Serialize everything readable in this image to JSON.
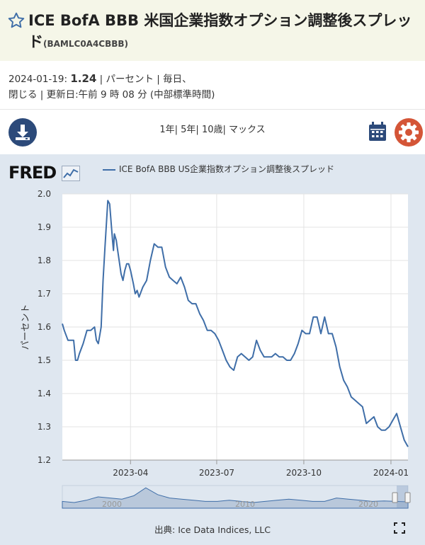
{
  "header": {
    "title": "ICE BofA BBB 米国企業指数オプション調整後スプレッド",
    "series_code": "(BAMLC0A4CBBB)"
  },
  "meta": {
    "date": "2024-01-19:",
    "value": "1.24",
    "line1_rest": "| パーセント | 毎日、",
    "line2": "閉じる | 更新日:午前 9 時 08 分 (中部標準時間)"
  },
  "toolbar": {
    "range_1y": "1年",
    "range_5y": "5年",
    "range_10y": "10歳",
    "range_max": "マックス",
    "sep": "|"
  },
  "icons": {
    "download": "download-icon",
    "calendar": "calendar-icon",
    "settings": "gear-icon",
    "favorite": "star-icon",
    "fullscreen": "fullscreen-icon"
  },
  "colors": {
    "line": "#3f6ea8",
    "download_bg": "#2c4a7a",
    "settings_bg": "#d45537",
    "chart_bg": "#dfe7f0"
  },
  "brand": {
    "logo_text": "FRED"
  },
  "source": "出典: Ice Data Indices, LLC",
  "chart_data": {
    "type": "line",
    "legend": "ICE BofA BBB US企業指数オプション調整後スプレッド",
    "ylabel": "パーセント",
    "ylim": [
      1.2,
      2.0
    ],
    "yticks": [
      "1.2",
      "1.3",
      "1.4",
      "1.5",
      "1.6",
      "1.7",
      "1.8",
      "1.9",
      "2.0"
    ],
    "xlim": [
      "2023-01-19",
      "2024-01-19"
    ],
    "xticks": [
      {
        "date": "2023-04-01",
        "label": "2023-04"
      },
      {
        "date": "2023-07-01",
        "label": "2023-07"
      },
      {
        "date": "2023-10-01",
        "label": "2023-10"
      },
      {
        "date": "2024-01-01",
        "label": "2024-01"
      }
    ],
    "navigator_labels": [
      "2000",
      "2010",
      "2020"
    ],
    "series": [
      {
        "x": [
          "2023-01-19",
          "2023-01-21",
          "2023-01-25",
          "2023-01-31",
          "2023-02-02",
          "2023-02-04",
          "2023-02-06",
          "2023-02-10",
          "2023-02-14",
          "2023-02-18",
          "2023-02-22",
          "2023-02-24",
          "2023-02-26",
          "2023-03-01",
          "2023-03-03",
          "2023-03-05",
          "2023-03-08",
          "2023-03-10",
          "2023-03-13",
          "2023-03-14",
          "2023-03-15",
          "2023-03-17",
          "2023-03-18",
          "2023-03-20",
          "2023-03-22",
          "2023-03-24",
          "2023-03-26",
          "2023-03-28",
          "2023-03-30",
          "2023-04-01",
          "2023-04-04",
          "2023-04-06",
          "2023-04-08",
          "2023-04-10",
          "2023-04-14",
          "2023-04-18",
          "2023-04-22",
          "2023-04-26",
          "2023-04-30",
          "2023-05-04",
          "2023-05-08",
          "2023-05-12",
          "2023-05-16",
          "2023-05-20",
          "2023-05-24",
          "2023-05-28",
          "2023-06-01",
          "2023-06-05",
          "2023-06-09",
          "2023-06-13",
          "2023-06-17",
          "2023-06-21",
          "2023-06-25",
          "2023-06-29",
          "2023-07-03",
          "2023-07-07",
          "2023-07-11",
          "2023-07-15",
          "2023-07-19",
          "2023-07-23",
          "2023-07-27",
          "2023-07-31",
          "2023-08-04",
          "2023-08-08",
          "2023-08-12",
          "2023-08-16",
          "2023-08-20",
          "2023-08-24",
          "2023-08-28",
          "2023-09-01",
          "2023-09-05",
          "2023-09-09",
          "2023-09-13",
          "2023-09-17",
          "2023-09-21",
          "2023-09-25",
          "2023-09-29",
          "2023-10-03",
          "2023-10-07",
          "2023-10-11",
          "2023-10-15",
          "2023-10-19",
          "2023-10-23",
          "2023-10-27",
          "2023-10-31",
          "2023-11-04",
          "2023-11-08",
          "2023-11-12",
          "2023-11-16",
          "2023-11-20",
          "2023-11-24",
          "2023-11-28",
          "2023-12-02",
          "2023-12-06",
          "2023-12-10",
          "2023-12-14",
          "2023-12-18",
          "2023-12-22",
          "2023-12-26",
          "2023-12-30",
          "2024-01-03",
          "2024-01-07",
          "2024-01-11",
          "2024-01-15",
          "2024-01-19"
        ],
        "y": [
          1.61,
          1.59,
          1.56,
          1.56,
          1.5,
          1.5,
          1.52,
          1.55,
          1.59,
          1.59,
          1.6,
          1.56,
          1.55,
          1.6,
          1.74,
          1.84,
          1.98,
          1.97,
          1.86,
          1.83,
          1.88,
          1.86,
          1.84,
          1.8,
          1.76,
          1.74,
          1.77,
          1.79,
          1.79,
          1.77,
          1.73,
          1.7,
          1.71,
          1.69,
          1.72,
          1.74,
          1.8,
          1.85,
          1.84,
          1.84,
          1.78,
          1.75,
          1.74,
          1.73,
          1.75,
          1.72,
          1.68,
          1.67,
          1.67,
          1.64,
          1.62,
          1.59,
          1.59,
          1.58,
          1.56,
          1.53,
          1.5,
          1.48,
          1.47,
          1.51,
          1.52,
          1.51,
          1.5,
          1.51,
          1.56,
          1.53,
          1.51,
          1.51,
          1.51,
          1.52,
          1.51,
          1.51,
          1.5,
          1.5,
          1.52,
          1.55,
          1.59,
          1.58,
          1.58,
          1.63,
          1.63,
          1.58,
          1.63,
          1.58,
          1.58,
          1.54,
          1.48,
          1.44,
          1.42,
          1.39,
          1.38,
          1.37,
          1.36,
          1.31,
          1.32,
          1.33,
          1.3,
          1.29,
          1.29,
          1.3,
          1.32,
          1.34,
          1.3,
          1.26,
          1.24
        ]
      }
    ]
  }
}
